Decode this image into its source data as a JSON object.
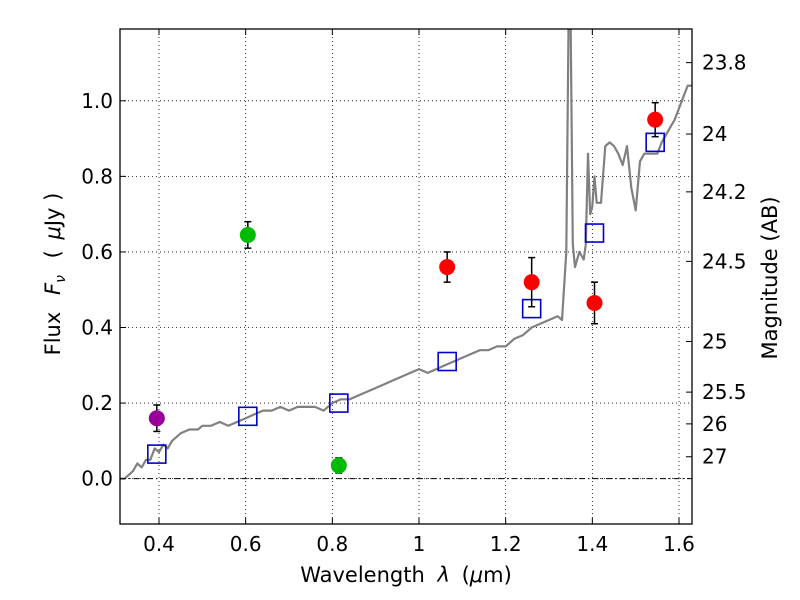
{
  "chart_data": {
    "type": "scatter",
    "xlabel_text": "Wavelength",
    "xlabel_var": "λ",
    "xlabel_unit_open": "(",
    "xlabel_unit_mu": "μ",
    "xlabel_unit_rest": "m)",
    "ylabel_text": "Flux",
    "ylabel_var": "F",
    "ylabel_sub": "ν",
    "ylabel_unit_open": "(",
    "ylabel_unit_mu": "μ",
    "ylabel_unit_rest": "Jy )",
    "y2label": "Magnitude (AB)",
    "xlim": [
      0.31,
      1.63
    ],
    "ylim": [
      -0.12,
      1.19
    ],
    "xticks": [
      0.4,
      0.6,
      0.8,
      1.0,
      1.2,
      1.4,
      1.6
    ],
    "xtick_labels": [
      "0.4",
      "0.6",
      "0.8",
      "1",
      "1.2",
      "1.4",
      "1.6"
    ],
    "yticks": [
      0.0,
      0.2,
      0.4,
      0.6,
      0.8,
      1.0
    ],
    "ytick_labels": [
      "0.0",
      "0.2",
      "0.4",
      "0.6",
      "0.8",
      "1.0"
    ],
    "mag_ticks": [
      {
        "label": "23.8",
        "flux": 1.101
      },
      {
        "label": "24",
        "flux": 0.912
      },
      {
        "label": "24.2",
        "flux": 0.759
      },
      {
        "label": "24.5",
        "flux": 0.575
      },
      {
        "label": "25",
        "flux": 0.363
      },
      {
        "label": "25.5",
        "flux": 0.229
      },
      {
        "label": "26",
        "flux": 0.145
      },
      {
        "label": "27",
        "flux": 0.058
      }
    ],
    "grid": true,
    "zero_line": true,
    "series": [
      {
        "kind": "line",
        "color": "#808080",
        "x": [
          0.31,
          0.32,
          0.33,
          0.34,
          0.35,
          0.36,
          0.37,
          0.38,
          0.39,
          0.4,
          0.41,
          0.42,
          0.43,
          0.45,
          0.47,
          0.49,
          0.5,
          0.52,
          0.54,
          0.56,
          0.58,
          0.6,
          0.62,
          0.64,
          0.66,
          0.68,
          0.7,
          0.72,
          0.74,
          0.76,
          0.78,
          0.8,
          0.82,
          0.84,
          0.86,
          0.88,
          0.9,
          0.92,
          0.94,
          0.96,
          0.98,
          1.0,
          1.02,
          1.04,
          1.06,
          1.08,
          1.1,
          1.12,
          1.14,
          1.16,
          1.18,
          1.2,
          1.22,
          1.24,
          1.26,
          1.28,
          1.3,
          1.32,
          1.33,
          1.34,
          1.345,
          1.35,
          1.355,
          1.36,
          1.37,
          1.38,
          1.385,
          1.39,
          1.395,
          1.4,
          1.405,
          1.41,
          1.42,
          1.43,
          1.44,
          1.45,
          1.46,
          1.47,
          1.48,
          1.49,
          1.5,
          1.51,
          1.52,
          1.53,
          1.54,
          1.55,
          1.56,
          1.57,
          1.58,
          1.59,
          1.6,
          1.61,
          1.62,
          1.63
        ],
        "y": [
          0.0,
          0.0,
          0.01,
          0.02,
          0.04,
          0.03,
          0.05,
          0.05,
          0.08,
          0.07,
          0.09,
          0.08,
          0.1,
          0.12,
          0.13,
          0.13,
          0.14,
          0.14,
          0.15,
          0.14,
          0.15,
          0.16,
          0.17,
          0.18,
          0.18,
          0.19,
          0.18,
          0.19,
          0.19,
          0.19,
          0.18,
          0.2,
          0.21,
          0.21,
          0.22,
          0.23,
          0.24,
          0.25,
          0.26,
          0.27,
          0.28,
          0.29,
          0.28,
          0.29,
          0.3,
          0.31,
          0.32,
          0.33,
          0.34,
          0.34,
          0.35,
          0.35,
          0.37,
          0.38,
          0.4,
          0.41,
          0.42,
          0.43,
          0.42,
          0.6,
          1.19,
          1.19,
          0.62,
          0.56,
          0.6,
          0.58,
          0.62,
          0.86,
          0.7,
          0.72,
          0.8,
          0.73,
          0.73,
          0.88,
          0.89,
          0.88,
          0.86,
          0.83,
          0.88,
          0.77,
          0.71,
          0.84,
          0.86,
          0.86,
          0.86,
          0.86,
          0.89,
          0.91,
          0.93,
          0.95,
          0.98,
          1.01,
          1.04,
          1.04
        ]
      },
      {
        "kind": "points",
        "marker": "square",
        "color": "#0000cc",
        "x": [
          0.395,
          0.605,
          0.815,
          1.065,
          1.26,
          1.405,
          1.545
        ],
        "y": [
          0.065,
          0.165,
          0.2,
          0.31,
          0.45,
          0.65,
          0.89
        ]
      },
      {
        "kind": "points",
        "marker": "circle",
        "color": "#990099",
        "x": [
          0.395
        ],
        "y": [
          0.16
        ],
        "err": [
          0.035
        ]
      },
      {
        "kind": "points",
        "marker": "circle",
        "color": "#00bb00",
        "x": [
          0.605,
          0.815
        ],
        "y": [
          0.645,
          0.035
        ],
        "err": [
          0.035,
          0.02
        ]
      },
      {
        "kind": "points",
        "marker": "circle",
        "color": "#ff0000",
        "x": [
          1.065,
          1.26,
          1.405,
          1.545
        ],
        "y": [
          0.56,
          0.52,
          0.465,
          0.95
        ],
        "err": [
          0.04,
          0.065,
          0.055,
          0.045
        ]
      }
    ]
  }
}
